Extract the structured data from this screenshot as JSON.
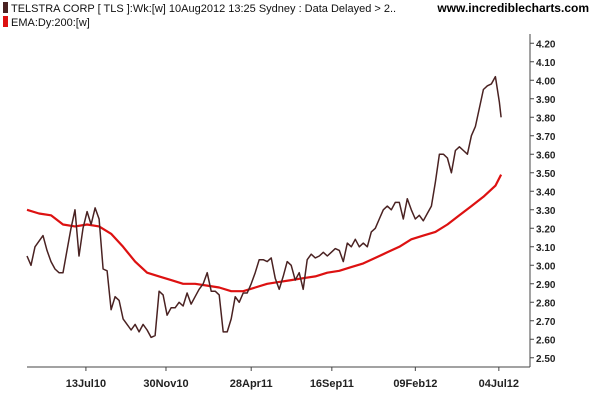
{
  "header": {
    "legend": [
      {
        "label": "TELSTRA CORP [ TLS ]:Wk:[w]  10Aug2012 13:25 Sydney : Data Delayed > 2..",
        "color": "#4a2222"
      },
      {
        "label": "EMA:Dy:200:[w]",
        "color": "#dd1111"
      }
    ],
    "site": "www.incrediblecharts.com"
  },
  "chart_data": {
    "type": "line",
    "x_range": [
      "2010-04-01",
      "2012-08-10"
    ],
    "x_ticks": [
      {
        "label": "13Jul10",
        "date": "2010-07-13"
      },
      {
        "label": "30Nov10",
        "date": "2010-11-30"
      },
      {
        "label": "28Apr11",
        "date": "2011-04-28"
      },
      {
        "label": "16Sep11",
        "date": "2011-09-16"
      },
      {
        "label": "09Feb12",
        "date": "2012-02-09"
      },
      {
        "label": "04Jul12",
        "date": "2012-07-04"
      }
    ],
    "y_ticks": [
      "4.20",
      "4.10",
      "4.00",
      "3.90",
      "3.80",
      "3.70",
      "3.60",
      "3.50",
      "3.40",
      "3.30",
      "3.20",
      "3.10",
      "3.00",
      "2.90",
      "2.80",
      "2.70",
      "2.60",
      "2.50"
    ],
    "ylim": [
      2.45,
      4.25
    ],
    "grid": false,
    "series": [
      {
        "name": "TELSTRA CORP [ TLS ]:Wk:[w]",
        "color": "#4a2222",
        "points": [
          [
            "2010-04-01",
            3.05
          ],
          [
            "2010-04-08",
            3.0
          ],
          [
            "2010-04-15",
            3.1
          ],
          [
            "2010-04-22",
            3.13
          ],
          [
            "2010-04-29",
            3.16
          ],
          [
            "2010-05-06",
            3.08
          ],
          [
            "2010-05-13",
            3.02
          ],
          [
            "2010-05-20",
            2.98
          ],
          [
            "2010-05-27",
            2.96
          ],
          [
            "2010-06-03",
            2.96
          ],
          [
            "2010-06-10",
            3.08
          ],
          [
            "2010-06-17",
            3.2
          ],
          [
            "2010-06-24",
            3.3
          ],
          [
            "2010-07-01",
            3.05
          ],
          [
            "2010-07-08",
            3.2
          ],
          [
            "2010-07-15",
            3.29
          ],
          [
            "2010-07-22",
            3.22
          ],
          [
            "2010-07-29",
            3.31
          ],
          [
            "2010-08-05",
            3.25
          ],
          [
            "2010-08-12",
            2.98
          ],
          [
            "2010-08-19",
            2.97
          ],
          [
            "2010-08-26",
            2.76
          ],
          [
            "2010-09-02",
            2.83
          ],
          [
            "2010-09-09",
            2.81
          ],
          [
            "2010-09-16",
            2.71
          ],
          [
            "2010-09-23",
            2.68
          ],
          [
            "2010-09-30",
            2.65
          ],
          [
            "2010-10-07",
            2.68
          ],
          [
            "2010-10-14",
            2.64
          ],
          [
            "2010-10-21",
            2.68
          ],
          [
            "2010-10-28",
            2.65
          ],
          [
            "2010-11-04",
            2.61
          ],
          [
            "2010-11-11",
            2.62
          ],
          [
            "2010-11-18",
            2.86
          ],
          [
            "2010-11-25",
            2.84
          ],
          [
            "2010-12-02",
            2.73
          ],
          [
            "2010-12-09",
            2.77
          ],
          [
            "2010-12-16",
            2.77
          ],
          [
            "2010-12-23",
            2.8
          ],
          [
            "2010-12-30",
            2.78
          ],
          [
            "2011-01-06",
            2.85
          ],
          [
            "2011-01-13",
            2.79
          ],
          [
            "2011-01-20",
            2.83
          ],
          [
            "2011-01-27",
            2.87
          ],
          [
            "2011-02-03",
            2.9
          ],
          [
            "2011-02-10",
            2.96
          ],
          [
            "2011-02-17",
            2.86
          ],
          [
            "2011-02-24",
            2.86
          ],
          [
            "2011-03-03",
            2.84
          ],
          [
            "2011-03-10",
            2.64
          ],
          [
            "2011-03-17",
            2.64
          ],
          [
            "2011-03-24",
            2.71
          ],
          [
            "2011-03-31",
            2.83
          ],
          [
            "2011-04-07",
            2.8
          ],
          [
            "2011-04-14",
            2.85
          ],
          [
            "2011-04-21",
            2.85
          ],
          [
            "2011-04-28",
            2.9
          ],
          [
            "2011-05-05",
            2.96
          ],
          [
            "2011-05-12",
            3.03
          ],
          [
            "2011-05-19",
            3.03
          ],
          [
            "2011-05-26",
            3.02
          ],
          [
            "2011-06-02",
            3.04
          ],
          [
            "2011-06-09",
            2.93
          ],
          [
            "2011-06-16",
            2.87
          ],
          [
            "2011-06-23",
            2.94
          ],
          [
            "2011-06-30",
            3.02
          ],
          [
            "2011-07-07",
            3.0
          ],
          [
            "2011-07-14",
            2.92
          ],
          [
            "2011-07-21",
            2.96
          ],
          [
            "2011-07-28",
            2.87
          ],
          [
            "2011-08-04",
            3.03
          ],
          [
            "2011-08-11",
            3.06
          ],
          [
            "2011-08-18",
            3.04
          ],
          [
            "2011-08-25",
            3.05
          ],
          [
            "2011-09-01",
            3.07
          ],
          [
            "2011-09-08",
            3.05
          ],
          [
            "2011-09-15",
            3.07
          ],
          [
            "2011-09-22",
            3.09
          ],
          [
            "2011-09-29",
            3.08
          ],
          [
            "2011-10-06",
            3.02
          ],
          [
            "2011-10-13",
            3.12
          ],
          [
            "2011-10-20",
            3.1
          ],
          [
            "2011-10-27",
            3.14
          ],
          [
            "2011-11-03",
            3.1
          ],
          [
            "2011-11-10",
            3.12
          ],
          [
            "2011-11-17",
            3.1
          ],
          [
            "2011-11-24",
            3.18
          ],
          [
            "2011-12-01",
            3.2
          ],
          [
            "2011-12-08",
            3.25
          ],
          [
            "2011-12-15",
            3.3
          ],
          [
            "2011-12-22",
            3.32
          ],
          [
            "2011-12-29",
            3.3
          ],
          [
            "2012-01-05",
            3.34
          ],
          [
            "2012-01-12",
            3.34
          ],
          [
            "2012-01-19",
            3.25
          ],
          [
            "2012-01-26",
            3.36
          ],
          [
            "2012-02-02",
            3.3
          ],
          [
            "2012-02-09",
            3.25
          ],
          [
            "2012-02-16",
            3.27
          ],
          [
            "2012-02-23",
            3.24
          ],
          [
            "2012-03-01",
            3.28
          ],
          [
            "2012-03-08",
            3.32
          ],
          [
            "2012-03-15",
            3.45
          ],
          [
            "2012-03-22",
            3.6
          ],
          [
            "2012-03-29",
            3.6
          ],
          [
            "2012-04-05",
            3.58
          ],
          [
            "2012-04-12",
            3.5
          ],
          [
            "2012-04-19",
            3.62
          ],
          [
            "2012-04-26",
            3.64
          ],
          [
            "2012-05-03",
            3.62
          ],
          [
            "2012-05-10",
            3.6
          ],
          [
            "2012-05-17",
            3.7
          ],
          [
            "2012-05-24",
            3.75
          ],
          [
            "2012-05-31",
            3.85
          ],
          [
            "2012-06-07",
            3.95
          ],
          [
            "2012-06-14",
            3.97
          ],
          [
            "2012-06-21",
            3.98
          ],
          [
            "2012-06-28",
            4.02
          ],
          [
            "2012-07-05",
            3.88
          ],
          [
            "2012-07-08",
            3.8
          ]
        ]
      },
      {
        "name": "EMA:Dy:200:[w]",
        "color": "#dd1111",
        "points": [
          [
            "2010-04-01",
            3.3
          ],
          [
            "2010-04-22",
            3.28
          ],
          [
            "2010-05-13",
            3.27
          ],
          [
            "2010-06-03",
            3.22
          ],
          [
            "2010-06-24",
            3.21
          ],
          [
            "2010-07-15",
            3.22
          ],
          [
            "2010-08-05",
            3.21
          ],
          [
            "2010-08-26",
            3.17
          ],
          [
            "2010-09-16",
            3.1
          ],
          [
            "2010-10-07",
            3.02
          ],
          [
            "2010-10-28",
            2.96
          ],
          [
            "2010-11-18",
            2.94
          ],
          [
            "2010-12-09",
            2.92
          ],
          [
            "2010-12-30",
            2.9
          ],
          [
            "2011-01-20",
            2.9
          ],
          [
            "2011-02-10",
            2.89
          ],
          [
            "2011-03-03",
            2.88
          ],
          [
            "2011-03-24",
            2.86
          ],
          [
            "2011-04-14",
            2.86
          ],
          [
            "2011-05-05",
            2.88
          ],
          [
            "2011-05-26",
            2.9
          ],
          [
            "2011-06-16",
            2.91
          ],
          [
            "2011-07-07",
            2.92
          ],
          [
            "2011-07-28",
            2.93
          ],
          [
            "2011-08-18",
            2.94
          ],
          [
            "2011-09-08",
            2.96
          ],
          [
            "2011-09-29",
            2.97
          ],
          [
            "2011-10-20",
            2.99
          ],
          [
            "2011-11-10",
            3.01
          ],
          [
            "2011-12-01",
            3.04
          ],
          [
            "2011-12-22",
            3.07
          ],
          [
            "2012-01-12",
            3.1
          ],
          [
            "2012-02-02",
            3.14
          ],
          [
            "2012-02-23",
            3.16
          ],
          [
            "2012-03-15",
            3.18
          ],
          [
            "2012-04-05",
            3.22
          ],
          [
            "2012-04-26",
            3.27
          ],
          [
            "2012-05-17",
            3.32
          ],
          [
            "2012-06-07",
            3.37
          ],
          [
            "2012-06-28",
            3.43
          ],
          [
            "2012-07-08",
            3.49
          ]
        ]
      }
    ]
  }
}
